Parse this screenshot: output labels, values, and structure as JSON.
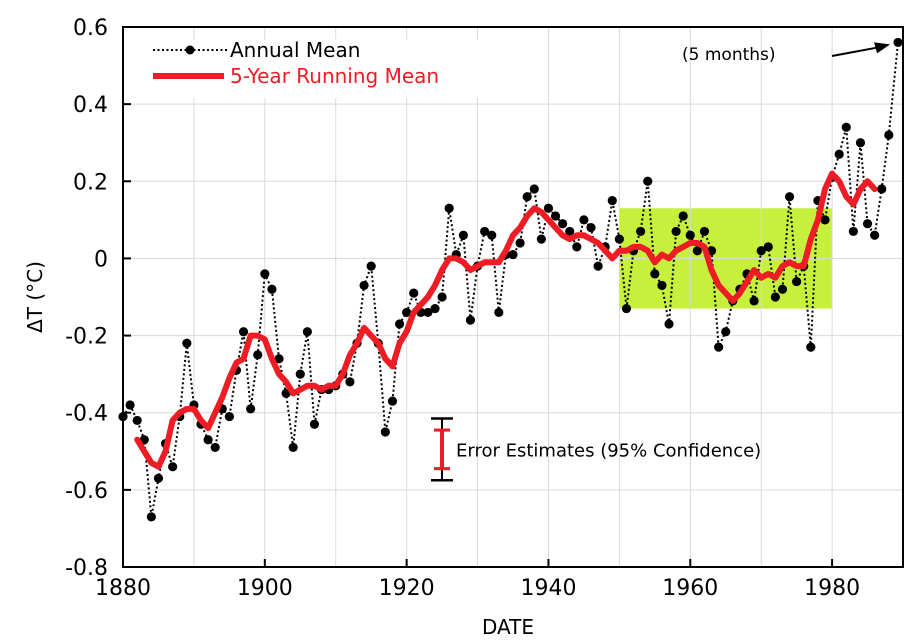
{
  "chart_data": {
    "type": "line",
    "xlabel": "DATE",
    "ylabel": "ΔT (°C)",
    "xlim": [
      1880,
      1990
    ],
    "ylim": [
      -0.8,
      0.6
    ],
    "x_ticks": [
      1880,
      1900,
      1920,
      1940,
      1960,
      1980
    ],
    "y_ticks": [
      -0.8,
      -0.6,
      -0.4,
      -0.2,
      0,
      0.2,
      0.4,
      0.6
    ],
    "x_tick_labels": [
      "1880",
      "1900",
      "1920",
      "1940",
      "1960",
      "1980"
    ],
    "y_tick_labels": [
      "-0.8",
      "-0.6",
      "-0.4",
      "-0.2",
      "0",
      "0.2",
      "0.4",
      "0.6"
    ],
    "grid": true,
    "legend_placement": "top-left",
    "series": [
      {
        "name": "Annual Mean",
        "style": "black dotted line with filled circle markers",
        "color": "#000000",
        "x": [
          1880,
          1881,
          1882,
          1883,
          1884,
          1885,
          1886,
          1887,
          1888,
          1889,
          1890,
          1891,
          1892,
          1893,
          1894,
          1895,
          1896,
          1897,
          1898,
          1899,
          1900,
          1901,
          1902,
          1903,
          1904,
          1905,
          1906,
          1907,
          1908,
          1909,
          1910,
          1911,
          1912,
          1913,
          1914,
          1915,
          1916,
          1917,
          1918,
          1919,
          1920,
          1921,
          1922,
          1923,
          1924,
          1925,
          1926,
          1927,
          1928,
          1929,
          1930,
          1931,
          1932,
          1933,
          1934,
          1935,
          1936,
          1937,
          1938,
          1939,
          1940,
          1941,
          1942,
          1943,
          1944,
          1945,
          1946,
          1947,
          1948,
          1949,
          1950,
          1951,
          1952,
          1953,
          1954,
          1955,
          1956,
          1957,
          1958,
          1959,
          1960,
          1961,
          1962,
          1963,
          1964,
          1965,
          1966,
          1967,
          1968,
          1969,
          1970,
          1971,
          1972,
          1973,
          1974,
          1975,
          1976,
          1977,
          1978,
          1979,
          1980,
          1981,
          1982,
          1983,
          1984,
          1985,
          1986,
          1987,
          1988
        ],
        "y": [
          -0.41,
          -0.38,
          -0.42,
          -0.47,
          -0.67,
          -0.57,
          -0.48,
          -0.54,
          -0.41,
          -0.22,
          -0.38,
          -0.43,
          -0.47,
          -0.49,
          -0.39,
          -0.41,
          -0.29,
          -0.19,
          -0.39,
          -0.25,
          -0.04,
          -0.08,
          -0.26,
          -0.35,
          -0.49,
          -0.3,
          -0.19,
          -0.43,
          -0.34,
          -0.34,
          -0.33,
          -0.3,
          -0.32,
          -0.22,
          -0.07,
          -0.02,
          -0.22,
          -0.45,
          -0.37,
          -0.17,
          -0.14,
          -0.09,
          -0.14,
          -0.14,
          -0.13,
          -0.1,
          0.13,
          0.01,
          0.06,
          -0.16,
          -0.02,
          0.07,
          0.06,
          -0.14,
          0.01,
          0.01,
          0.04,
          0.16,
          0.18,
          0.05,
          0.13,
          0.11,
          0.09,
          0.07,
          0.03,
          0.1,
          0.08,
          -0.02,
          0.03,
          0.15,
          0.05,
          -0.13,
          0.02,
          0.07,
          0.2,
          -0.04,
          -0.07,
          -0.17,
          0.07,
          0.11,
          0.06,
          0.02,
          0.07,
          0.02,
          -0.23,
          -0.19,
          -0.11,
          -0.08,
          -0.04,
          -0.11,
          0.02,
          0.03,
          -0.1,
          -0.08,
          0.16,
          -0.06,
          -0.02,
          -0.23,
          0.15,
          0.1,
          0.21,
          0.27,
          0.34,
          0.07,
          0.3,
          0.09,
          0.06,
          0.18,
          0.32
        ],
        "partial_point": {
          "x": 1989.3,
          "y": 0.56,
          "note": "(5 months)"
        }
      },
      {
        "name": "5-Year Running Mean",
        "style": "thick solid red line",
        "color": "#ee1c24",
        "x": [
          1882,
          1883,
          1884,
          1885,
          1886,
          1887,
          1888,
          1889,
          1890,
          1891,
          1892,
          1893,
          1894,
          1895,
          1896,
          1897,
          1898,
          1899,
          1900,
          1901,
          1902,
          1903,
          1904,
          1905,
          1906,
          1907,
          1908,
          1909,
          1910,
          1911,
          1912,
          1913,
          1914,
          1915,
          1916,
          1917,
          1918,
          1919,
          1920,
          1921,
          1922,
          1923,
          1924,
          1925,
          1926,
          1927,
          1928,
          1929,
          1930,
          1931,
          1932,
          1933,
          1934,
          1935,
          1936,
          1937,
          1938,
          1939,
          1940,
          1941,
          1942,
          1943,
          1944,
          1945,
          1946,
          1947,
          1948,
          1949,
          1950,
          1951,
          1952,
          1953,
          1954,
          1955,
          1956,
          1957,
          1958,
          1959,
          1960,
          1961,
          1962,
          1963,
          1964,
          1965,
          1966,
          1967,
          1968,
          1969,
          1970,
          1971,
          1972,
          1973,
          1974,
          1975,
          1976,
          1977,
          1978,
          1979,
          1980,
          1981,
          1982,
          1983,
          1984,
          1985,
          1986
        ],
        "y": [
          -0.47,
          -0.5,
          -0.53,
          -0.54,
          -0.5,
          -0.42,
          -0.4,
          -0.39,
          -0.39,
          -0.42,
          -0.44,
          -0.4,
          -0.36,
          -0.31,
          -0.27,
          -0.26,
          -0.2,
          -0.2,
          -0.21,
          -0.26,
          -0.3,
          -0.32,
          -0.35,
          -0.34,
          -0.33,
          -0.33,
          -0.34,
          -0.33,
          -0.33,
          -0.3,
          -0.25,
          -0.22,
          -0.18,
          -0.2,
          -0.22,
          -0.26,
          -0.28,
          -0.22,
          -0.19,
          -0.14,
          -0.12,
          -0.1,
          -0.07,
          -0.03,
          0.0,
          0.0,
          -0.01,
          -0.03,
          -0.02,
          -0.01,
          -0.01,
          -0.01,
          0.02,
          0.06,
          0.08,
          0.11,
          0.13,
          0.12,
          0.1,
          0.08,
          0.06,
          0.05,
          0.06,
          0.06,
          0.05,
          0.04,
          0.02,
          0.0,
          0.02,
          0.02,
          0.03,
          0.03,
          0.02,
          -0.01,
          0.01,
          0.0,
          0.02,
          0.03,
          0.04,
          0.04,
          0.03,
          -0.03,
          -0.07,
          -0.09,
          -0.11,
          -0.09,
          -0.06,
          -0.03,
          -0.05,
          -0.04,
          -0.05,
          -0.02,
          -0.01,
          -0.02,
          -0.02,
          0.05,
          0.1,
          0.18,
          0.22,
          0.2,
          0.16,
          0.14,
          0.18,
          0.2,
          0.18
        ]
      }
    ],
    "error_bars": [
      {
        "label": "Error Estimates (95% Confidence)",
        "color": "#000000",
        "center": -0.495,
        "low": -0.575,
        "high": -0.415
      },
      {
        "label": "",
        "color": "#ee1c24",
        "center": -0.495,
        "low": -0.545,
        "high": -0.445
      }
    ],
    "highlight_region": {
      "x": [
        1950,
        1980
      ],
      "y": [
        -0.13,
        0.13
      ],
      "color": "#c6f03c"
    },
    "annotations": [
      {
        "text": "(5 months)"
      },
      {
        "text": "Error Estimates (95% Confidence)"
      }
    ]
  }
}
